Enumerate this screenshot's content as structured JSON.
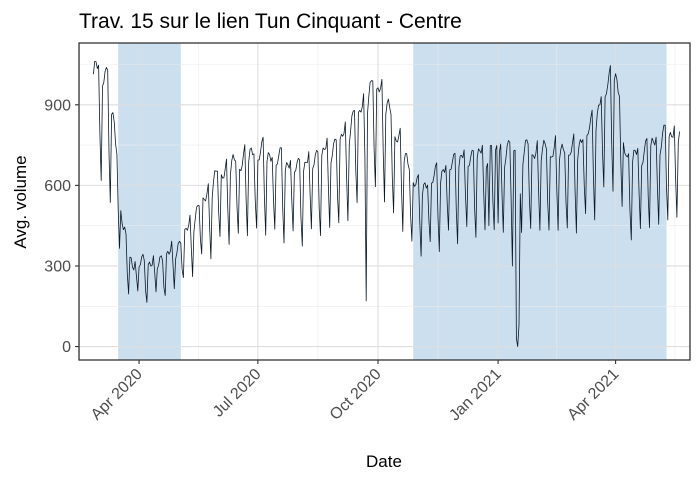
{
  "chart_data": {
    "type": "line",
    "title": "Trav. 15 sur le lien Tun Cinquant - Centre",
    "xlabel": "Date",
    "ylabel": "Avg. volume",
    "x_range": [
      "2020-02-15",
      "2021-05-28"
    ],
    "ylim": [
      -50,
      1130
    ],
    "grid": true,
    "x_ticks": [
      {
        "date": "2020-04-01",
        "label": "Apr 2020"
      },
      {
        "date": "2020-07-01",
        "label": "Jul 2020"
      },
      {
        "date": "2020-10-01",
        "label": "Oct 2020"
      },
      {
        "date": "2021-01-01",
        "label": "Jan 2021"
      },
      {
        "date": "2021-04-01",
        "label": "Apr 2021"
      }
    ],
    "y_ticks": [
      0,
      300,
      600,
      900
    ],
    "shaded_periods": [
      {
        "start": "2020-03-16",
        "end": "2020-05-03"
      },
      {
        "start": "2020-10-28",
        "end": "2021-05-10"
      }
    ],
    "series": [
      {
        "name": "Avg. volume",
        "color": "#0a1a2a",
        "start_date": "2020-02-26",
        "end_date": "2021-05-20",
        "weekly_pattern": [
          1.0,
          1.03,
          1.05,
          1.06,
          1.08,
          0.8,
          0.62
        ],
        "level_anchors": [
          {
            "date": "2020-02-26",
            "value": 1000
          },
          {
            "date": "2020-03-06",
            "value": 980
          },
          {
            "date": "2020-03-13",
            "value": 800
          },
          {
            "date": "2020-03-20",
            "value": 400
          },
          {
            "date": "2020-03-27",
            "value": 300
          },
          {
            "date": "2020-04-15",
            "value": 300
          },
          {
            "date": "2020-05-01",
            "value": 360
          },
          {
            "date": "2020-05-15",
            "value": 480
          },
          {
            "date": "2020-06-01",
            "value": 620
          },
          {
            "date": "2020-07-01",
            "value": 700
          },
          {
            "date": "2020-08-01",
            "value": 640
          },
          {
            "date": "2020-09-01",
            "value": 730
          },
          {
            "date": "2020-10-01",
            "value": 950
          },
          {
            "date": "2020-10-20",
            "value": 700
          },
          {
            "date": "2020-11-01",
            "value": 560
          },
          {
            "date": "2020-12-01",
            "value": 670
          },
          {
            "date": "2021-01-01",
            "value": 700
          },
          {
            "date": "2021-02-01",
            "value": 700
          },
          {
            "date": "2021-03-01",
            "value": 700
          },
          {
            "date": "2021-03-15",
            "value": 800
          },
          {
            "date": "2021-03-31",
            "value": 1000
          },
          {
            "date": "2021-04-10",
            "value": 660
          },
          {
            "date": "2021-05-01",
            "value": 730
          },
          {
            "date": "2021-05-20",
            "value": 780
          }
        ],
        "overrides": [
          {
            "date": "2020-09-22",
            "value": 170
          },
          {
            "date": "2021-01-12",
            "value": 300
          },
          {
            "date": "2021-01-15",
            "value": 30
          },
          {
            "date": "2021-01-16",
            "value": 0
          },
          {
            "date": "2021-01-17",
            "value": 80
          },
          {
            "date": "2020-12-25",
            "value": 450
          },
          {
            "date": "2021-01-01",
            "value": 460
          }
        ]
      }
    ]
  }
}
